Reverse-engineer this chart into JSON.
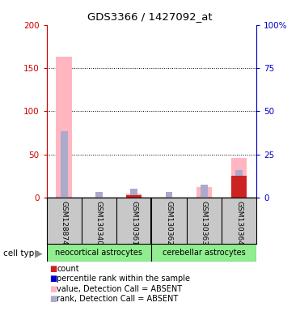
{
  "title": "GDS3366 / 1427092_at",
  "samples": [
    "GSM128874",
    "GSM130340",
    "GSM130361",
    "GSM130362",
    "GSM130363",
    "GSM130364"
  ],
  "group1_name": "neocortical astrocytes",
  "group2_name": "cerebellar astrocytes",
  "group_color": "#90ee90",
  "bar_values_pink": [
    163,
    0,
    5,
    0,
    12,
    46
  ],
  "bar_values_blue": [
    77,
    6,
    10,
    6,
    15,
    32
  ],
  "bar_values_red": [
    0,
    0,
    3,
    0,
    0,
    25
  ],
  "left_ylim": [
    0,
    200
  ],
  "left_yticks": [
    0,
    50,
    100,
    150,
    200
  ],
  "right_ylim": [
    0,
    100
  ],
  "right_yticks": [
    0,
    25,
    50,
    75,
    100
  ],
  "right_yticklabels": [
    "0",
    "25",
    "50",
    "75",
    "100%"
  ],
  "left_tick_color": "#cc0000",
  "right_tick_color": "#0000cc",
  "bg_color": "#c8c8c8",
  "bar_color_pink": "#ffb6c1",
  "bar_color_blue": "#aaaacc",
  "bar_color_red": "#cc2222",
  "legend_items": [
    {
      "label": "count",
      "color": "#cc2222"
    },
    {
      "label": "percentile rank within the sample",
      "color": "#0000cc"
    },
    {
      "label": "value, Detection Call = ABSENT",
      "color": "#ffb6c1"
    },
    {
      "label": "rank, Detection Call = ABSENT",
      "color": "#aaaacc"
    }
  ]
}
